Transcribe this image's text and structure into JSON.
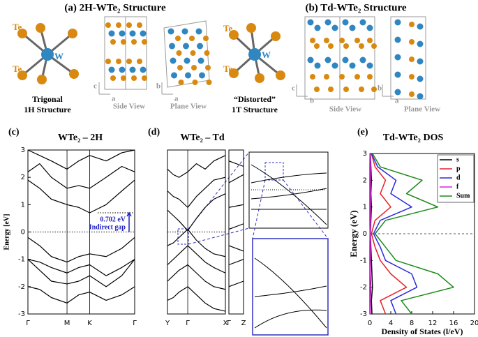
{
  "figure": {
    "panel_a": {
      "title": "(a) 2H-WTe₂ Structure",
      "atom_top": "Te",
      "atom_center": "W",
      "atom_bottom": "Te",
      "caption": [
        "Trigonal",
        "1H Structure"
      ],
      "side_axes": [
        "c",
        "a"
      ],
      "side_view": "Side View",
      "plane_axes": [
        "b",
        "a"
      ],
      "plane_view": "Plane View"
    },
    "panel_b": {
      "title": "(b) Td-WTe₂ Structure",
      "atom_top": "Te",
      "atom_center": "W",
      "atom_bottom": "Te",
      "caption": [
        "“Distorted”",
        "1T Structure"
      ],
      "side_axes": [
        "c",
        "b"
      ],
      "side_view": "Side View",
      "plane_axes": [
        "b",
        "a"
      ],
      "plane_view": "Plane View"
    }
  },
  "chart_data": [
    {
      "type": "band",
      "label": "(c)",
      "title": "WTe₂ – 2H",
      "y_label": "Energy [eV]",
      "color": "#000000",
      "x": [
        0,
        0.3,
        0.6,
        1,
        1.3,
        1.58,
        2.0,
        2.4,
        2.73
      ],
      "xlim": [
        0,
        2.73
      ],
      "xticks": [
        {
          "value": 0,
          "label": "Γ"
        },
        {
          "value": 1,
          "label": "M"
        },
        {
          "value": 1.58,
          "label": "K"
        },
        {
          "value": 2.73,
          "label": "Γ"
        }
      ],
      "ylim": [
        -3,
        3
      ],
      "yticks": [
        -3,
        -2,
        -1,
        0,
        1,
        2,
        3
      ],
      "hline": 0,
      "gap_arrow": [
        0,
        0.702
      ],
      "annotations": [
        "0.702 eV",
        "Indirect gap"
      ],
      "annotation_color": "#1f1fbf",
      "series": [
        {
          "values": [
            -0.2,
            -0.5,
            -0.9,
            -1.1,
            -0.9,
            -0.8,
            -0.9,
            -0.6,
            -0.2
          ]
        },
        {
          "values": [
            -1.0,
            -1.1,
            -1.3,
            -1.5,
            -1.3,
            -1.2,
            -1.6,
            -1.3,
            -1.0
          ]
        },
        {
          "values": [
            -1.0,
            -1.4,
            -1.8,
            -1.9,
            -1.8,
            -1.6,
            -2.0,
            -1.6,
            -1.0
          ]
        },
        {
          "values": [
            -2.0,
            -2.1,
            -2.4,
            -2.6,
            -2.3,
            -2.2,
            -2.5,
            -2.3,
            -2.0
          ]
        },
        {
          "values": [
            1.9,
            1.6,
            1.2,
            1.0,
            0.9,
            0.702,
            1.0,
            1.5,
            1.9
          ]
        },
        {
          "values": [
            2.2,
            2.5,
            2.0,
            1.6,
            1.7,
            1.6,
            2.0,
            2.4,
            2.2
          ]
        },
        {
          "values": [
            3.0,
            2.8,
            2.6,
            2.3,
            2.6,
            2.8,
            2.6,
            2.9,
            3.0
          ]
        }
      ]
    },
    {
      "type": "band",
      "label": "(d)",
      "title": "WTe₂ – Td",
      "color": "#000000",
      "x": [
        0,
        0.1,
        0.2,
        0.35,
        0.5,
        0.65,
        0.8,
        1
      ],
      "xlim": [
        0,
        1
      ],
      "xticks": [
        {
          "value": 0,
          "label": "Y"
        },
        {
          "value": 0.35,
          "label": "Γ"
        },
        {
          "value": 1,
          "label": "X"
        }
      ],
      "ylim": [
        -3,
        3
      ],
      "hline": 0,
      "series": [
        {
          "values": [
            -0.5,
            -0.4,
            -0.2,
            0.1,
            -0.3,
            -0.6,
            -0.8,
            -0.9
          ]
        },
        {
          "values": [
            -1.2,
            -1.0,
            -0.8,
            -0.5,
            -0.8,
            -1.1,
            -1.3,
            -1.5
          ]
        },
        {
          "values": [
            -1.8,
            -1.6,
            -1.4,
            -1.2,
            -1.5,
            -1.8,
            -2.0,
            -2.1
          ]
        },
        {
          "values": [
            -2.5,
            -2.4,
            -2.2,
            -2.0,
            -2.3,
            -2.6,
            -2.8,
            -2.9
          ]
        },
        {
          "values": [
            0.8,
            0.6,
            0.4,
            0.05,
            0.5,
            0.9,
            1.2,
            1.4
          ]
        },
        {
          "values": [
            1.5,
            1.3,
            1.2,
            0.9,
            1.3,
            1.6,
            1.9,
            2.0
          ]
        },
        {
          "values": [
            2.3,
            2.1,
            2.0,
            2.2,
            2.5,
            2.3,
            2.6,
            2.8
          ]
        }
      ]
    },
    {
      "type": "band",
      "color": "#000000",
      "x": [
        0,
        1
      ],
      "xlim": [
        0,
        1
      ],
      "xticks": [
        {
          "value": 0,
          "label": "Γ"
        },
        {
          "value": 1,
          "label": "Z"
        }
      ],
      "ylim": [
        -3,
        3
      ],
      "series": [
        {
          "values": [
            0.1,
            0.3
          ]
        },
        {
          "values": [
            0.9,
            1.0
          ]
        },
        {
          "values": [
            -0.5,
            -0.7
          ]
        },
        {
          "values": [
            -1.2,
            -1.0
          ]
        },
        {
          "values": [
            1.8,
            2.1
          ]
        },
        {
          "values": [
            -2.0,
            -1.8
          ]
        },
        {
          "values": [
            2.6,
            2.4
          ]
        }
      ]
    },
    {
      "type": "dos",
      "label": "(e)",
      "title": "Td-WTe₂ DOS",
      "y_label": "Energy (eV)",
      "x_label": "Density of States (l/eV)",
      "orientation": "horizontal",
      "legend": "upper right",
      "vline_energy": 0,
      "y": [
        -3,
        -2.5,
        -2,
        -1.5,
        -1,
        -0.5,
        0,
        0.5,
        1,
        1.5,
        2,
        2.5,
        3
      ],
      "ylim": [
        -3,
        3
      ],
      "yticks": [
        -3,
        -2,
        -1,
        0,
        1,
        2,
        3
      ],
      "xlim": [
        0,
        20
      ],
      "xticks": [
        0,
        4,
        8,
        12,
        16,
        20
      ],
      "series": [
        {
          "name": "s",
          "color": "#000000",
          "values": [
            0.4,
            0.3,
            0.5,
            0.4,
            0.3,
            0.2,
            0.1,
            0.2,
            0.3,
            0.2,
            0.3,
            0.2,
            0.1
          ]
        },
        {
          "name": "p",
          "color": "#e8202a",
          "values": [
            3,
            2,
            7,
            4,
            2,
            1,
            0.3,
            1,
            4,
            2,
            3,
            1,
            0.3
          ]
        },
        {
          "name": "d",
          "color": "#2a2ae0",
          "values": [
            5,
            4,
            9,
            8,
            3,
            2,
            0.7,
            2,
            8,
            4,
            5,
            1.5,
            0.3
          ]
        },
        {
          "name": "f",
          "color": "#e020e0",
          "values": [
            0.1,
            0.1,
            0.2,
            0.1,
            0.1,
            0.1,
            0.05,
            0.1,
            0.1,
            0.1,
            0.1,
            0.1,
            0.05
          ]
        },
        {
          "name": "Sum",
          "color": "#1a8a1a",
          "values": [
            8,
            6,
            16,
            13,
            5,
            3,
            1,
            3,
            13,
            7,
            10,
            2,
            0.5
          ]
        }
      ]
    }
  ]
}
